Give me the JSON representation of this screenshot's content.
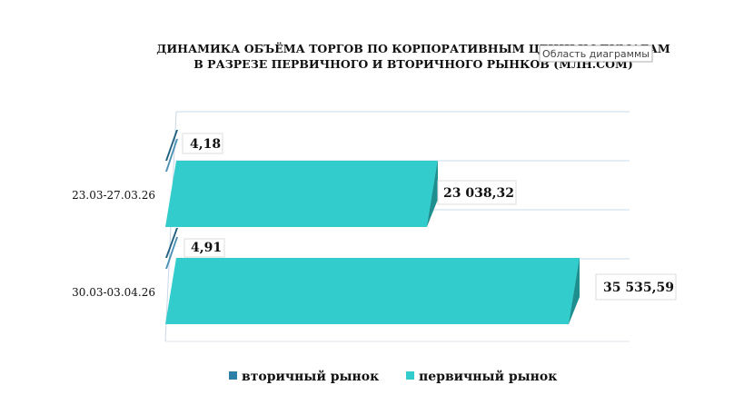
{
  "chart_data": {
    "type": "bar",
    "orientation": "horizontal",
    "style": "3d",
    "title_lines": [
      "ДИНАМИКА ОБЪЁМА ТОРГОВ ПО КОРПОРАТИВНЫМ ЦЕННЫМ БУМАГАМ",
      "В РАЗРЕЗЕ ПЕРВИЧНОГО И ВТОРИЧНОГО РЫНКОВ  (МЛН.СОМ)"
    ],
    "categories": [
      "23.03-27.03.26",
      "30.03-03.04.26"
    ],
    "series": [
      {
        "name": "вторичный рынок",
        "color": "#2E7FA8",
        "values": [
          4.18,
          4.91
        ],
        "labels": [
          "4,18",
          "4,91"
        ]
      },
      {
        "name": "первичный рынок",
        "color": "#33CCCC",
        "values": [
          23038.32,
          35535.59
        ],
        "labels": [
          "23 038,32",
          "35 535,59"
        ]
      }
    ],
    "xlim": [
      0,
      40000
    ],
    "grid": true,
    "legend_position": "bottom",
    "tooltip": "Область диаграммы"
  }
}
